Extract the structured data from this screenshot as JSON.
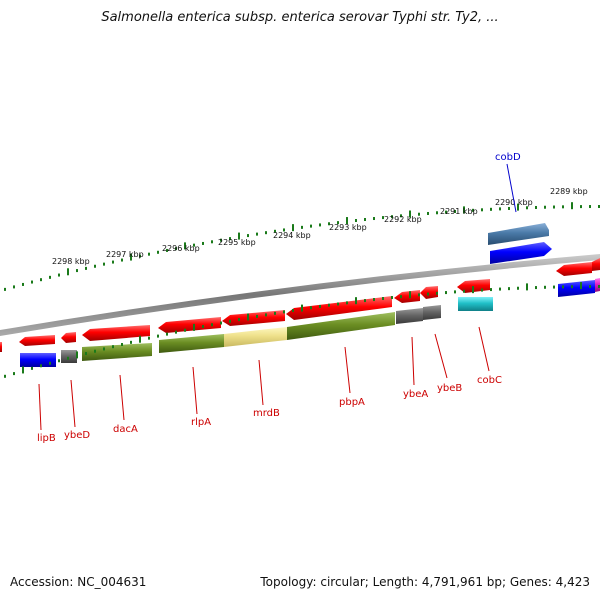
{
  "header": {
    "title": "Salmonella enterica subsp. enterica serovar Typhi str. Ty2, ..."
  },
  "footer": {
    "accession": "Accession: NC_004631",
    "summary": "Topology: circular; Length: 4,791,961 bp; Genes: 4,423"
  },
  "colors": {
    "backbone": "#888888",
    "ticks": "#1a7a1a",
    "forward_cds": "#e00000",
    "strand_blue": "#0000ee",
    "gene_olive": "#6b8e23",
    "gene_yellow": "#eee08a",
    "gene_gray": "#666666",
    "gene_cyan": "#20c0c8",
    "gene_steel": "#4a7aa8",
    "gene_magenta": "#e020c0",
    "label_red": "#cc0000",
    "label_blue": "#0000cc"
  },
  "scale": {
    "unit": "kbp",
    "labels": [
      "2298 kbp",
      "2297 kbp",
      "2296 kbp",
      "2295 kbp",
      "2294 kbp",
      "2293 kbp",
      "2292 kbp",
      "2291 kbp",
      "2290 kbp",
      "2289 kbp"
    ]
  },
  "genes_bottom": [
    {
      "name": "lipB",
      "icon": "arrow"
    },
    {
      "name": "ybeD",
      "icon": "arrow"
    },
    {
      "name": "dacA",
      "icon": "arrow"
    },
    {
      "name": "rlpA",
      "icon": "arrow"
    },
    {
      "name": "mrdB",
      "icon": "arrow"
    },
    {
      "name": "pbpA",
      "icon": "arrow"
    },
    {
      "name": "ybeA",
      "icon": "arrow"
    },
    {
      "name": "ybeB",
      "icon": "arrow"
    },
    {
      "name": "cobC",
      "icon": "arrow"
    }
  ],
  "genes_top": [
    {
      "name": "cobD",
      "icon": "arrow"
    }
  ]
}
